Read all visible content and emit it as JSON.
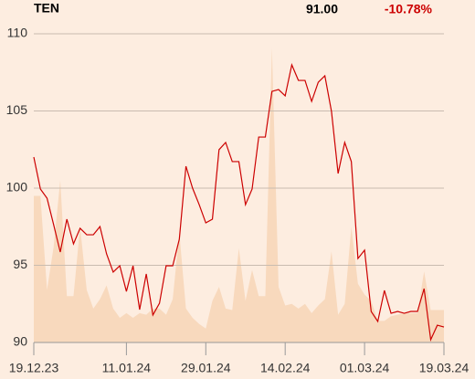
{
  "header": {
    "symbol": "TEN",
    "last": "91.00",
    "change": "-10.78%"
  },
  "chart_data": {
    "type": "line",
    "x": [
      0,
      1,
      2,
      3,
      4,
      5,
      6,
      7,
      8,
      9,
      10,
      11,
      12,
      13,
      14,
      15,
      16,
      17,
      18,
      19,
      20,
      21,
      22,
      23,
      24,
      25,
      26,
      27,
      28,
      29,
      30,
      31,
      32,
      33,
      34,
      35,
      36,
      37,
      38,
      39,
      40,
      41,
      42,
      43,
      44,
      45,
      46,
      47,
      48,
      49,
      50,
      51,
      52,
      53,
      54,
      55,
      56,
      57,
      58,
      59,
      60,
      61,
      62
    ],
    "series": [
      {
        "name": "Volume",
        "color": "#f8d9bd",
        "axis": "y2",
        "kind": "area",
        "values": [
          9.5,
          9.5,
          3.4,
          6.2,
          10.5,
          3.0,
          3.0,
          7.5,
          3.4,
          2.2,
          2.8,
          3.7,
          2.2,
          1.6,
          1.9,
          1.6,
          1.9,
          1.8,
          2.2,
          2.2,
          1.8,
          2.8,
          7.1,
          2.2,
          1.6,
          1.2,
          0.9,
          2.7,
          3.6,
          2.2,
          2.1,
          6.1,
          2.7,
          4.7,
          3.0,
          3.0,
          19.1,
          3.6,
          2.4,
          2.5,
          2.2,
          2.5,
          1.9,
          2.4,
          2.8,
          5.9,
          1.8,
          2.5,
          7.5,
          3.8,
          3.1,
          2.7,
          1.4,
          1.4,
          1.7,
          1.8,
          1.9,
          1.9,
          1.9,
          4.6,
          2.1,
          2.1,
          2.1
        ]
      },
      {
        "name": "Price",
        "color": "#cc0000",
        "kind": "line",
        "values": [
          102.01,
          99.94,
          99.35,
          97.63,
          95.86,
          97.99,
          96.39,
          97.4,
          96.98,
          96.98,
          97.51,
          95.74,
          94.56,
          94.97,
          93.31,
          94.97,
          92.13,
          94.44,
          91.78,
          92.54,
          94.97,
          94.97,
          96.69,
          101.42,
          100.0,
          98.93,
          97.75,
          97.99,
          102.49,
          102.96,
          101.72,
          101.72,
          98.93,
          99.94,
          103.31,
          103.31,
          106.27,
          106.39,
          105.98,
          107.99,
          106.98,
          106.98,
          105.62,
          106.86,
          107.28,
          104.97,
          100.95,
          102.96,
          101.72,
          95.44,
          95.98,
          92.01,
          91.36,
          93.37,
          91.89,
          92.01,
          91.89,
          92.01,
          92.01,
          93.49,
          90.18,
          91.12,
          91.0
        ]
      }
    ],
    "xlim": [
      0,
      62
    ],
    "xticks": [
      {
        "value": 0,
        "label": "19.12.23"
      },
      {
        "value": 14,
        "label": "11.01.24"
      },
      {
        "value": 26,
        "label": "29.01.24"
      },
      {
        "value": 38,
        "label": "14.02.24"
      },
      {
        "value": 50,
        "label": "01.03.24"
      },
      {
        "value": 62,
        "label": "19.03.24"
      }
    ],
    "ylim": [
      90,
      110
    ],
    "yticks": [
      90,
      95,
      100,
      105,
      110
    ],
    "y2lim": [
      0,
      20
    ],
    "grid": true
  }
}
